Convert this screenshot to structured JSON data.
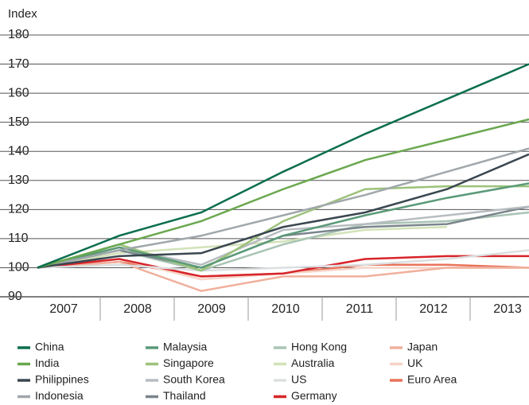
{
  "chart_data": {
    "type": "line",
    "y_label": "Index",
    "categories": [
      "2007",
      "2008",
      "2009",
      "2010",
      "2011",
      "2012",
      "2013"
    ],
    "ylim": [
      90,
      180
    ],
    "yticks": [
      90,
      100,
      110,
      120,
      130,
      140,
      150,
      160,
      170,
      180
    ],
    "grid": true,
    "series": [
      {
        "name": "China",
        "color": "#0b6e4f",
        "values": [
          100,
          111,
          119,
          133,
          146,
          158,
          170
        ]
      },
      {
        "name": "India",
        "color": "#6aa84f",
        "values": [
          100,
          108,
          116,
          127,
          137,
          144,
          151
        ]
      },
      {
        "name": "Philippines",
        "color": "#3a4750",
        "values": [
          100,
          104,
          105,
          114,
          119,
          127,
          139
        ]
      },
      {
        "name": "Indonesia",
        "color": "#a0a8ab",
        "values": [
          100,
          106,
          111,
          118,
          125,
          133,
          141
        ]
      },
      {
        "name": "Malaysia",
        "color": "#5a9a78",
        "values": [
          100,
          107,
          100,
          111,
          118,
          124,
          129
        ]
      },
      {
        "name": "Singapore",
        "color": "#9cc27a",
        "values": [
          100,
          108,
          99,
          116,
          127,
          128,
          128
        ]
      },
      {
        "name": "South Korea",
        "color": "#b7bcc0",
        "values": [
          100,
          107,
          101,
          113,
          115,
          118,
          121
        ]
      },
      {
        "name": "Thailand",
        "color": "#7a858c",
        "values": [
          100,
          106,
          100,
          111,
          114,
          115,
          121
        ]
      },
      {
        "name": "Hong Kong",
        "color": "#a9c4b4",
        "values": [
          100,
          106,
          99,
          108,
          115,
          116,
          119
        ]
      },
      {
        "name": "Australia",
        "color": "#d2e2b8",
        "values": [
          100,
          105,
          107,
          109,
          113,
          114,
          null
        ]
      },
      {
        "name": "US",
        "color": "#dcdfe1",
        "values": [
          100,
          101,
          99,
          100,
          101,
          103,
          106
        ]
      },
      {
        "name": "Germany",
        "color": "#d7242a",
        "values": [
          100,
          103,
          97,
          98,
          103,
          104,
          104
        ]
      },
      {
        "name": "Japan",
        "color": "#f0b09c",
        "values": [
          100,
          102,
          92,
          97,
          97,
          100,
          100
        ]
      },
      {
        "name": "UK",
        "color": "#f6d3c7",
        "values": [
          100,
          103,
          96,
          98,
          100,
          100,
          100
        ]
      },
      {
        "name": "Euro Area",
        "color": "#e8735a",
        "values": [
          100,
          102,
          97,
          98,
          101,
          101,
          100
        ]
      }
    ]
  }
}
